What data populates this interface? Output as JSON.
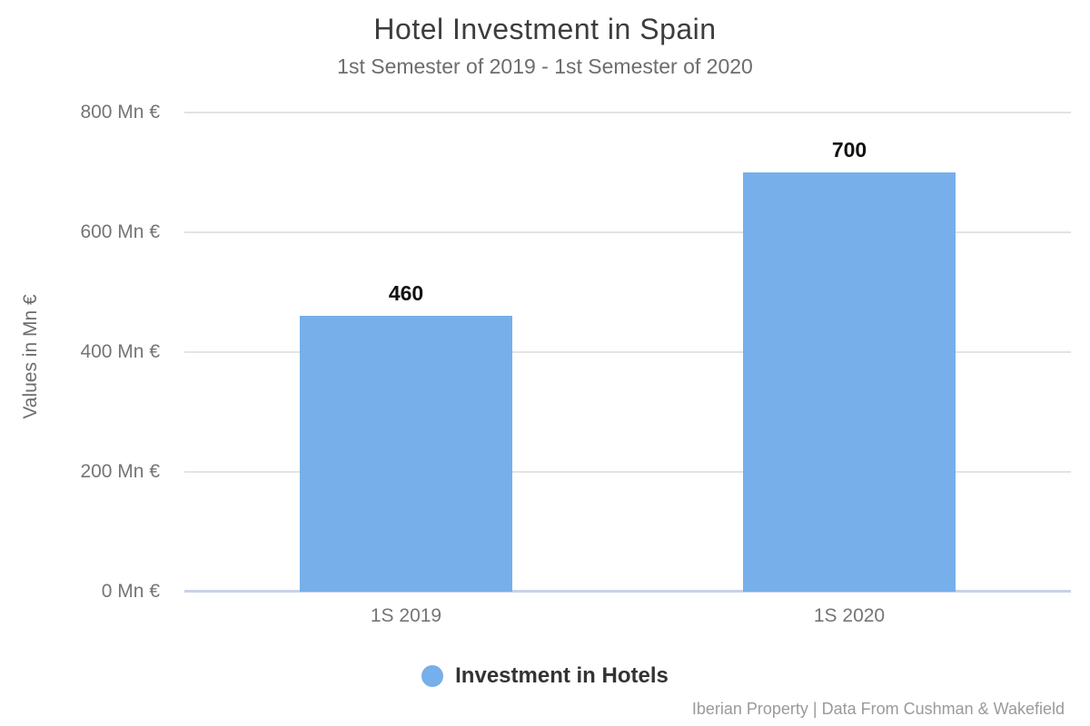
{
  "header": {
    "title": "Hotel Investment in Spain",
    "subtitle": "1st Semester of 2019 - 1st Semester of 2020"
  },
  "chart_data": {
    "type": "bar",
    "title": "Hotel Investment in Spain",
    "subtitle": "1st Semester of 2019 - 1st Semester of 2020",
    "categories": [
      "1S 2019",
      "1S 2020"
    ],
    "values": [
      460,
      700
    ],
    "series": [
      {
        "name": "Investment in Hotels",
        "values": [
          460,
          700
        ]
      }
    ],
    "xlabel": "",
    "ylabel": "Values in Mn €",
    "ylim": [
      0,
      800
    ],
    "ytick_step": 200,
    "yticks": [
      {
        "value": 800,
        "label": "800 Mn €"
      },
      {
        "value": 600,
        "label": "600 Mn €"
      },
      {
        "value": 400,
        "label": "400 Mn €"
      },
      {
        "value": 200,
        "label": "200 Mn €"
      },
      {
        "value": 0,
        "label": "0 Mn €"
      }
    ],
    "grid": true,
    "legend_position": "bottom",
    "bar_color": "#76AFE9"
  },
  "legend": {
    "items": [
      {
        "label": "Investment in Hotels",
        "color": "#76AFE9"
      }
    ]
  },
  "footer": {
    "credit": "Iberian Property | Data From Cushman & Wakefield"
  },
  "colors": {
    "bar": "#76AFE9",
    "gridline": "#E3E3E3",
    "baseline": "#C7D2E7",
    "title_text": "#3D3D3D",
    "subtitle_text": "#6D6D6D",
    "axis_text": "#757575",
    "value_label_text": "#111111",
    "footer_text": "#9A9A9A"
  }
}
